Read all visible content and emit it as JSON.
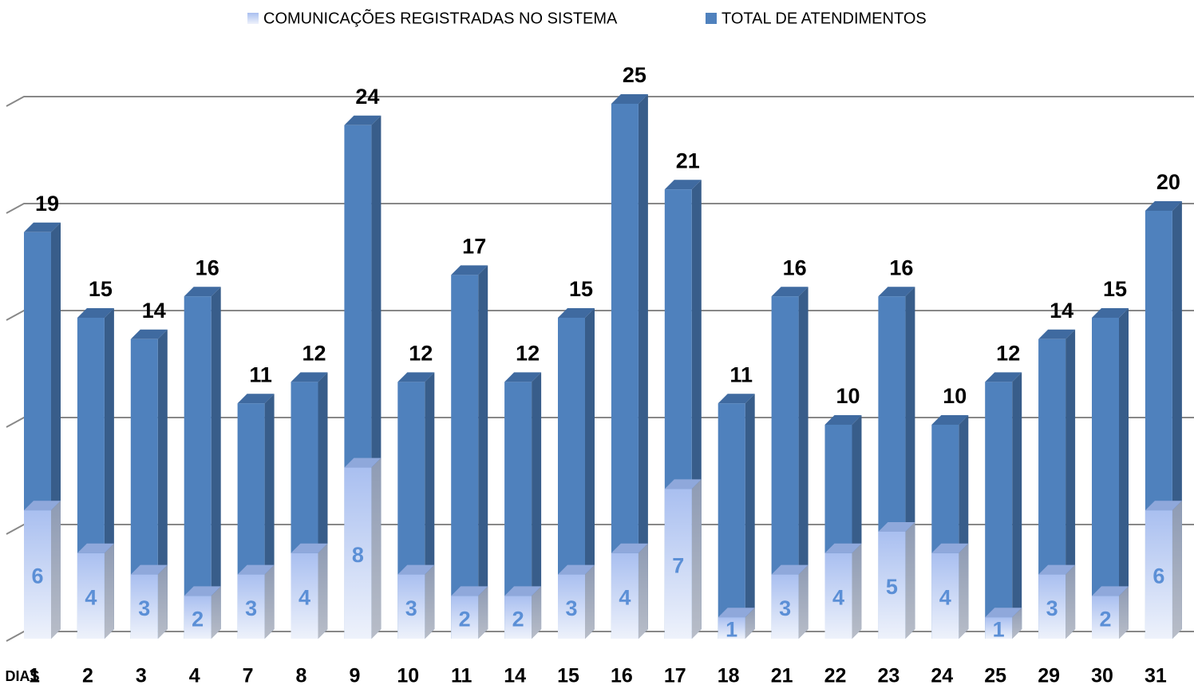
{
  "chart_data": {
    "type": "bar",
    "overlap": true,
    "x_label": "DIAS",
    "categories": [
      "1",
      "2",
      "3",
      "4",
      "7",
      "8",
      "9",
      "10",
      "11",
      "14",
      "15",
      "16",
      "17",
      "18",
      "21",
      "22",
      "23",
      "24",
      "25",
      "29",
      "30",
      "31"
    ],
    "series": [
      {
        "name": "COMUNICAÇÕES  REGISTRADAS NO SISTEMA",
        "color": "#a9bff0",
        "values": [
          6,
          4,
          3,
          2,
          3,
          4,
          8,
          3,
          2,
          2,
          3,
          4,
          7,
          1,
          3,
          4,
          5,
          4,
          1,
          3,
          2,
          6
        ]
      },
      {
        "name": "TOTAL DE ATENDIMENTOS",
        "color": "#4f81bd",
        "values": [
          19,
          15,
          14,
          16,
          11,
          12,
          24,
          12,
          17,
          12,
          15,
          25,
          21,
          11,
          16,
          10,
          16,
          10,
          12,
          14,
          15,
          20
        ]
      }
    ],
    "ylim": [
      0,
      25
    ],
    "yticks": [
      0,
      5,
      10,
      15,
      20,
      25
    ],
    "grid": true
  }
}
